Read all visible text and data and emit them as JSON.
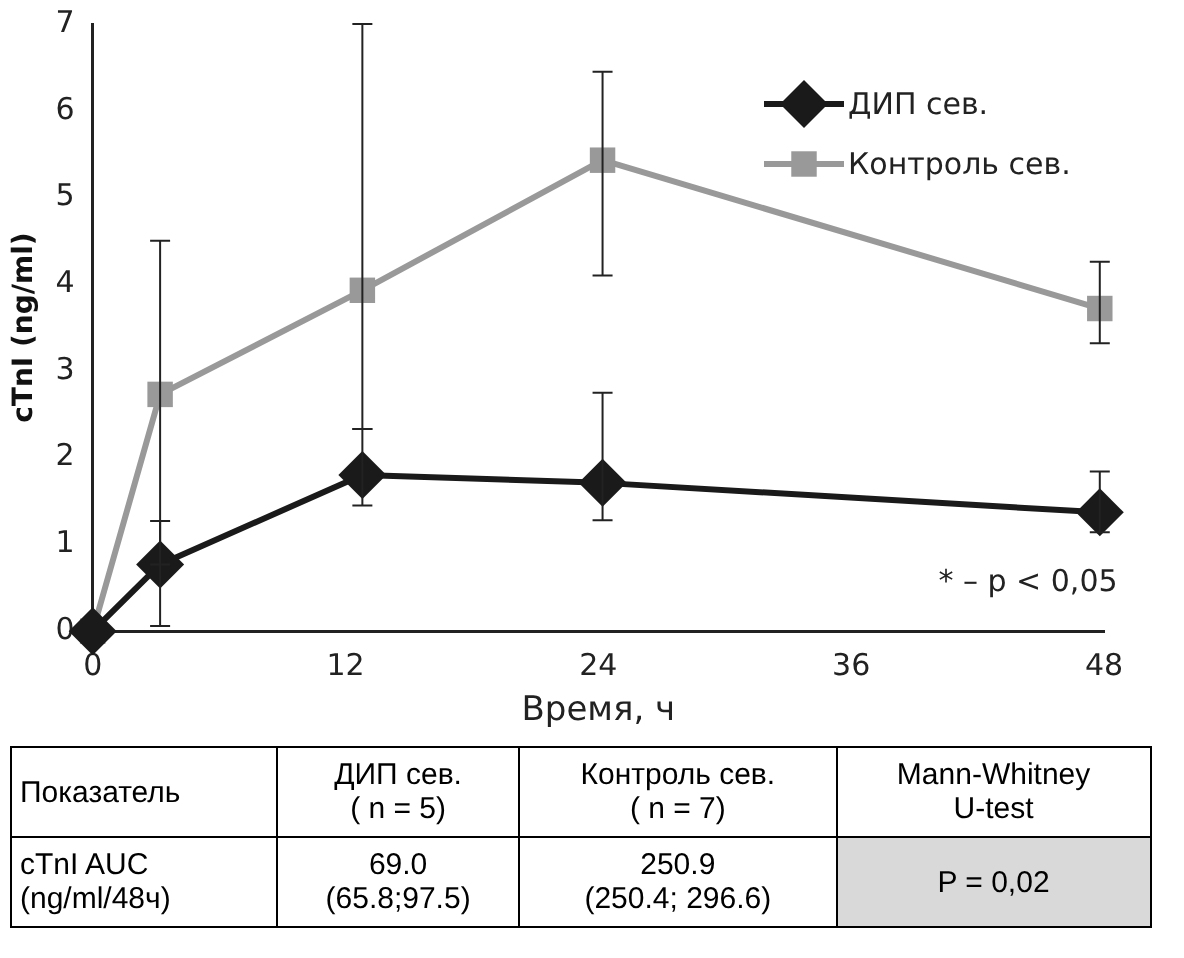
{
  "chart_data": [
    {
      "type": "line",
      "xlabel": "Время, ч",
      "ylabel": "cTnI (ng/ml)",
      "xlim": [
        0,
        48
      ],
      "xticks": [
        0,
        12,
        24,
        36,
        48
      ],
      "ylim": [
        0,
        7
      ],
      "yticks": [
        0,
        1,
        2,
        3,
        4,
        5,
        6,
        7
      ],
      "grid": false,
      "legend": "top right",
      "line_style": "solid",
      "series": [
        {
          "name": "ДИП сев.",
          "color": "#1a1a1a",
          "marker": "diamond",
          "x": [
            0,
            3.2,
            12.8,
            24.2,
            47.8
          ],
          "values": [
            0,
            0.77,
            1.8,
            1.71,
            1.37
          ],
          "errors": [
            null,
            [
              0.77,
              1.27
            ],
            [
              1.45,
              2.33
            ],
            [
              1.28,
              2.75
            ],
            [
              1.14,
              1.84
            ]
          ]
        },
        {
          "name": "Контроль сев.",
          "color": "#999999",
          "marker": "square",
          "x": [
            0,
            3.2,
            12.8,
            24.2,
            47.8
          ],
          "values": [
            0,
            2.73,
            3.93,
            5.43,
            3.72
          ],
          "errors": [
            null,
            [
              0.06,
              4.5
            ],
            [
              2.33,
              7.0
            ],
            [
              4.1,
              6.45
            ],
            [
              3.32,
              4.26
            ]
          ]
        }
      ],
      "annotations": [
        "* – p < 0,05"
      ]
    },
    {
      "type": "other",
      "annotations": [
        "Показатель",
        "ДИП сев.\n( n = 5)",
        "Контроль сев.\n( n = 7)",
        "Mann-Whitney\nU-test",
        "cTnI AUC\n(ng/ml/48ч)",
        "69.0\n(65.8;97.5)",
        "250.9\n(250.4; 296.6)",
        "P = 0,02"
      ]
    }
  ]
}
